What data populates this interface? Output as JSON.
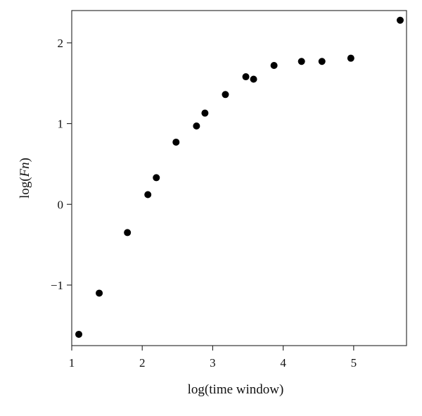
{
  "chart_data": {
    "type": "scatter",
    "xlabel": "log(time window)",
    "ylabel_parts": [
      "log(",
      "Fn",
      ")"
    ],
    "xlim": [
      1.0,
      5.75
    ],
    "ylim": [
      -1.75,
      2.4
    ],
    "xticks": [
      1,
      2,
      3,
      4,
      5
    ],
    "yticks": [
      -1,
      0,
      1,
      2
    ],
    "xtick_labels": [
      "1",
      "2",
      "3",
      "4",
      "5"
    ],
    "ytick_labels": [
      "−1",
      "0",
      "1",
      "2"
    ],
    "grid": false,
    "legend": "none",
    "series": [
      {
        "x": [
          1.1,
          1.39,
          1.79,
          2.08,
          2.2,
          2.48,
          2.77,
          2.89,
          3.18,
          3.47,
          3.58,
          3.87,
          4.26,
          4.55,
          4.96,
          5.66
        ],
        "y": [
          -1.61,
          -1.1,
          -0.35,
          0.12,
          0.33,
          0.77,
          0.97,
          1.13,
          1.36,
          1.58,
          1.55,
          1.72,
          1.77,
          1.77,
          1.81,
          2.28
        ]
      }
    ],
    "marker_color": "#000000"
  }
}
